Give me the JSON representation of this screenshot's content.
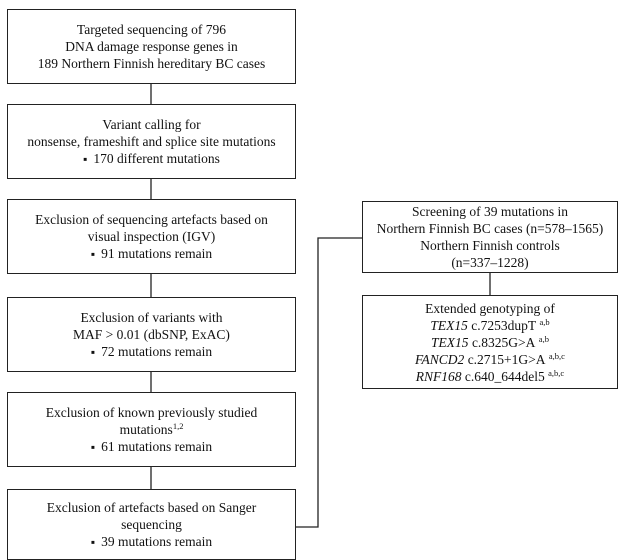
{
  "left_boxes": [
    {
      "lines": [
        "Targeted sequencing of 796",
        "DNA damage response genes in",
        "189 Northern Finnish hereditary BC cases"
      ]
    },
    {
      "lines": [
        "Variant calling for",
        "nonsense, frameshift and splice site mutations"
      ],
      "bullet": "170 different mutations"
    },
    {
      "lines": [
        "Exclusion of sequencing artefacts based on",
        "visual inspection (IGV)"
      ],
      "bullet": "91 mutations remain"
    },
    {
      "lines": [
        "Exclusion of variants with",
        "MAF > 0.01 (dbSNP, ExAC)"
      ],
      "bullet": "72 mutations remain"
    },
    {
      "lines": [
        "Exclusion of known previously studied"
      ],
      "line2_text": "mutations",
      "line2_sup": "1,2",
      "bullet": "61 mutations remain"
    },
    {
      "lines": [
        "Exclusion of artefacts based on Sanger",
        "sequencing"
      ],
      "bullet": "39 mutations remain"
    }
  ],
  "screening_box": {
    "title": "Screening of 39 mutations in",
    "cases": "Northern Finnish BC cases (n=578–1565)",
    "controls_label": "Northern Finnish controls",
    "controls_n": "(n=337–1228)"
  },
  "genotyping_box": {
    "title": "Extended genotyping of",
    "mutations": [
      {
        "gene": "TEX15",
        "variant": " c.7253dupT",
        "sup": "a,b"
      },
      {
        "gene": "TEX15",
        "variant": " c.8325G>A",
        "sup": "a,b"
      },
      {
        "gene": "FANCD2",
        "variant": " c.2715+1G>A",
        "sup": "a,b,c"
      },
      {
        "gene": "RNF168",
        "variant": " c.640_644del5",
        "sup": "a,b,c"
      }
    ]
  }
}
